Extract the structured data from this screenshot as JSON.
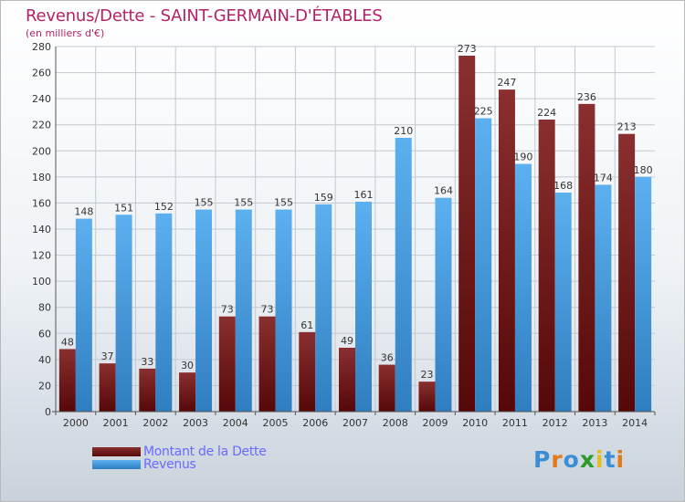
{
  "title": "Revenus/Dette - SAINT-GERMAIN-D'ÉTABLES",
  "subtitle": "(en milliers d'€)",
  "logo_text": "Proxiti",
  "colors": {
    "title": "#b22266",
    "dette": "#6e1a1a",
    "revenus": "#4aa0e6",
    "legend_text": "#6a6aff"
  },
  "chart_data": {
    "type": "bar",
    "title": "Revenus/Dette - SAINT-GERMAIN-D'ÉTABLES",
    "ylabel": "(en milliers d'€)",
    "categories": [
      "2000",
      "2001",
      "2002",
      "2003",
      "2004",
      "2005",
      "2006",
      "2007",
      "2008",
      "2009",
      "2010",
      "2011",
      "2012",
      "2013",
      "2014"
    ],
    "yticks": [
      0,
      20,
      40,
      60,
      80,
      100,
      120,
      140,
      160,
      180,
      200,
      220,
      240,
      260,
      280
    ],
    "ylim": [
      0,
      280
    ],
    "grid": true,
    "legend_position": "bottom-left",
    "series": [
      {
        "name": "Montant de la Dette",
        "color": "#6e1a1a",
        "values": [
          48,
          37,
          33,
          30,
          73,
          73,
          61,
          49,
          36,
          23,
          273,
          247,
          224,
          236,
          213
        ]
      },
      {
        "name": "Revenus",
        "color": "#4aa0e6",
        "values": [
          148,
          151,
          152,
          155,
          155,
          155,
          159,
          161,
          210,
          164,
          225,
          190,
          168,
          174,
          180
        ]
      }
    ]
  }
}
